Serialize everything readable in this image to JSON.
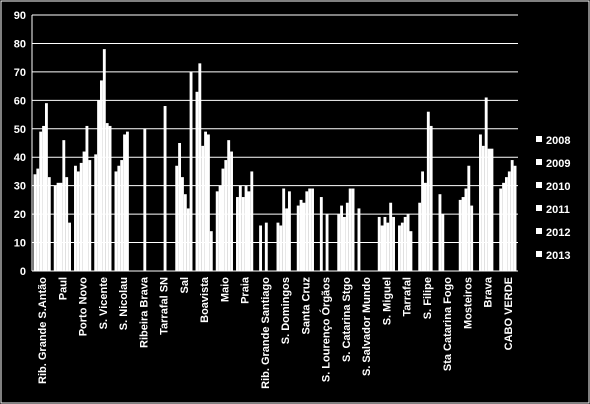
{
  "chart_data": {
    "type": "bar",
    "grid": true,
    "legend": "right",
    "categories": [
      "Rib. Grande S.Antão",
      "Paul",
      "Porto Novo",
      "S. Vicente",
      "S. Nicolau",
      "Ribeira Brava",
      "Tarrafal SN",
      "Sal",
      "Boavista",
      "Maio",
      "Praia",
      "Rib. Grande Santiago",
      "S. Domingos",
      "Santa Cruz",
      "S. Lourenço Órgãos",
      "S. Catarina Stgo",
      "S. Salvador Mundo",
      "S. Miguel",
      "Tarrafal",
      "S. Filipe",
      "Sta Catarina Fogo",
      "Mosteiros",
      "Brava",
      "CABO VERDE"
    ],
    "series": [
      {
        "name": "2008",
        "color": "#ffffff",
        "values": [
          34,
          30,
          37,
          41,
          35,
          null,
          null,
          37,
          63,
          28,
          26,
          null,
          17,
          23,
          null,
          20,
          22,
          19,
          16,
          24,
          27,
          25,
          48,
          29
        ]
      },
      {
        "name": "2009",
        "color": "#ffffff",
        "values": [
          36,
          31,
          35,
          60,
          37,
          null,
          null,
          45,
          73,
          30,
          30,
          16,
          16,
          25,
          26,
          23,
          null,
          16,
          17,
          35,
          20,
          26,
          44,
          31
        ]
      },
      {
        "name": "2010",
        "color": "#ffffff",
        "values": [
          49,
          31,
          38,
          67,
          39,
          null,
          null,
          33,
          44,
          36,
          26,
          null,
          29,
          24,
          null,
          19,
          null,
          19,
          19,
          31,
          null,
          29,
          61,
          33
        ]
      },
      {
        "name": "2011",
        "color": "#ffffff",
        "values": [
          51,
          46,
          42,
          78,
          48,
          50,
          58,
          27,
          49,
          39,
          30,
          17,
          22,
          28,
          20,
          24,
          null,
          17,
          20,
          56,
          null,
          37,
          43,
          35
        ]
      },
      {
        "name": "2012",
        "color": "#ffffff",
        "values": [
          59,
          33,
          51,
          52,
          49,
          null,
          null,
          22,
          48,
          46,
          28,
          null,
          28,
          29,
          null,
          29,
          null,
          24,
          14,
          51,
          null,
          23,
          43,
          39
        ]
      },
      {
        "name": "2013",
        "color": "#ffffff",
        "values": [
          33,
          17,
          39,
          51,
          null,
          null,
          null,
          70,
          14,
          42,
          35,
          null,
          null,
          29,
          null,
          29,
          null,
          19,
          null,
          null,
          null,
          null,
          null,
          37
        ]
      }
    ],
    "ylim": [
      0,
      90
    ],
    "yticks": [
      0,
      10,
      20,
      30,
      40,
      50,
      60,
      70,
      80,
      90
    ]
  }
}
